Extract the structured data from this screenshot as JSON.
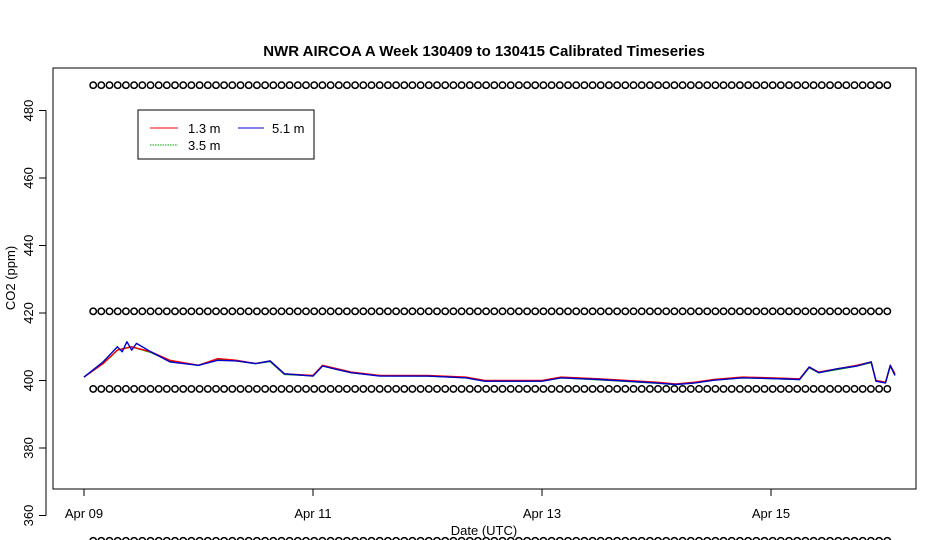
{
  "chart_data": {
    "type": "line",
    "title": "NWR AIRCOA A  Week 130409 to 130415  Calibrated Timeseries",
    "xlabel": "Date (UTC)",
    "ylabel": "CO2 (ppm)",
    "x_ticks": [
      {
        "day": 0,
        "label": "Apr 09"
      },
      {
        "day": 2,
        "label": "Apr 11"
      },
      {
        "day": 4,
        "label": "Apr 13"
      },
      {
        "day": 6,
        "label": "Apr 15"
      }
    ],
    "y_ticks": [
      360,
      380,
      400,
      420,
      440,
      460,
      480
    ],
    "xlim": [
      "Apr 09 00:00",
      "Apr 16 02:00"
    ],
    "ylim": [
      349,
      490
    ],
    "legend": {
      "placement": "top-left",
      "entries": [
        {
          "name": "1.3 m",
          "color": "#ff0000"
        },
        {
          "name": "3.5 m",
          "color": "#00aa00"
        },
        {
          "name": "5.1 m",
          "color": "#0000cc"
        }
      ]
    },
    "reference_marker_rows_ppm": [
      487.5,
      420.5,
      397.5,
      352.5
    ],
    "series": [
      {
        "name": "1.3 m",
        "color": "#ff0000",
        "points": [
          [
            "Apr 09 00:00",
            401
          ],
          [
            "Apr 09 04:00",
            405
          ],
          [
            "Apr 09 07:00",
            409
          ],
          [
            "Apr 09 10:00",
            410
          ],
          [
            "Apr 09 14:00",
            408.5
          ],
          [
            "Apr 09 18:00",
            406
          ],
          [
            "Apr 10 00:00",
            404.5
          ],
          [
            "Apr 10 04:00",
            406.5
          ],
          [
            "Apr 10 08:00",
            406
          ],
          [
            "Apr 10 12:00",
            405
          ],
          [
            "Apr 10 15:00",
            405.8
          ],
          [
            "Apr 10 18:00",
            402
          ],
          [
            "Apr 11 00:00",
            401.5
          ],
          [
            "Apr 11 02:00",
            404.5
          ],
          [
            "Apr 11 05:00",
            403.5
          ],
          [
            "Apr 11 08:00",
            402.5
          ],
          [
            "Apr 11 14:00",
            401.5
          ],
          [
            "Apr 12 00:00",
            401.5
          ],
          [
            "Apr 12 08:00",
            401
          ],
          [
            "Apr 12 12:00",
            400
          ],
          [
            "Apr 13 00:00",
            400
          ],
          [
            "Apr 13 04:00",
            401
          ],
          [
            "Apr 13 12:00",
            400.5
          ],
          [
            "Apr 14 00:00",
            399.5
          ],
          [
            "Apr 14 04:00",
            399
          ],
          [
            "Apr 14 08:00",
            399.5
          ],
          [
            "Apr 14 12:00",
            400.3
          ],
          [
            "Apr 14 18:00",
            401
          ],
          [
            "Apr 15 00:00",
            400.8
          ],
          [
            "Apr 15 06:00",
            400.5
          ],
          [
            "Apr 15 08:00",
            404
          ],
          [
            "Apr 15 10:00",
            402.5
          ],
          [
            "Apr 15 14:00",
            403.5
          ],
          [
            "Apr 15 18:00",
            404.5
          ],
          [
            "Apr 15 21:00",
            405.5
          ],
          [
            "Apr 15 22:00",
            400
          ],
          [
            "Apr 16 00:00",
            399.5
          ],
          [
            "Apr 16 01:00",
            404.5
          ],
          [
            "Apr 16 02:00",
            402
          ]
        ]
      },
      {
        "name": "3.5 m",
        "color": "#00aa00",
        "points": [
          [
            "Apr 09 00:00",
            401
          ],
          [
            "Apr 09 04:00",
            405
          ],
          [
            "Apr 09 07:00",
            409
          ],
          [
            "Apr 09 10:00",
            410
          ],
          [
            "Apr 09 14:00",
            408.3
          ],
          [
            "Apr 09 18:00",
            405.8
          ],
          [
            "Apr 10 00:00",
            404.5
          ],
          [
            "Apr 10 04:00",
            406.3
          ],
          [
            "Apr 10 08:00",
            405.8
          ],
          [
            "Apr 10 12:00",
            405
          ],
          [
            "Apr 10 15:00",
            405.6
          ],
          [
            "Apr 10 18:00",
            401.8
          ],
          [
            "Apr 11 00:00",
            401.4
          ],
          [
            "Apr 11 02:00",
            404.3
          ],
          [
            "Apr 11 05:00",
            403.3
          ],
          [
            "Apr 11 08:00",
            402.3
          ],
          [
            "Apr 11 14:00",
            401.4
          ],
          [
            "Apr 12 00:00",
            401.3
          ],
          [
            "Apr 12 08:00",
            400.8
          ],
          [
            "Apr 12 12:00",
            399.8
          ],
          [
            "Apr 13 00:00",
            399.8
          ],
          [
            "Apr 13 04:00",
            400.8
          ],
          [
            "Apr 13 12:00",
            400.2
          ],
          [
            "Apr 14 00:00",
            399.2
          ],
          [
            "Apr 14 04:00",
            398.8
          ],
          [
            "Apr 14 08:00",
            399.3
          ],
          [
            "Apr 14 12:00",
            400.1
          ],
          [
            "Apr 14 18:00",
            400.8
          ],
          [
            "Apr 15 00:00",
            400.6
          ],
          [
            "Apr 15 06:00",
            400.3
          ],
          [
            "Apr 15 08:00",
            403.8
          ],
          [
            "Apr 15 10:00",
            402.3
          ],
          [
            "Apr 15 14:00",
            403.3
          ],
          [
            "Apr 15 18:00",
            404.3
          ],
          [
            "Apr 15 21:00",
            405.3
          ],
          [
            "Apr 15 22:00",
            399.8
          ],
          [
            "Apr 16 00:00",
            399.3
          ],
          [
            "Apr 16 01:00",
            404.3
          ],
          [
            "Apr 16 02:00",
            401.5
          ]
        ]
      },
      {
        "name": "5.1 m",
        "color": "#0000cc",
        "points": [
          [
            "Apr 09 00:00",
            401
          ],
          [
            "Apr 09 04:00",
            405.5
          ],
          [
            "Apr 09 07:00",
            410
          ],
          [
            "Apr 09 08:00",
            408.5
          ],
          [
            "Apr 09 09:00",
            411.5
          ],
          [
            "Apr 09 10:00",
            409
          ],
          [
            "Apr 09 11:00",
            411
          ],
          [
            "Apr 09 14:00",
            408.5
          ],
          [
            "Apr 09 18:00",
            405.5
          ],
          [
            "Apr 10 00:00",
            404.5
          ],
          [
            "Apr 10 04:00",
            406
          ],
          [
            "Apr 10 08:00",
            405.8
          ],
          [
            "Apr 10 12:00",
            405
          ],
          [
            "Apr 10 15:00",
            405.8
          ],
          [
            "Apr 10 18:00",
            402
          ],
          [
            "Apr 11 00:00",
            401.3
          ],
          [
            "Apr 11 02:00",
            404.3
          ],
          [
            "Apr 11 05:00",
            403.3
          ],
          [
            "Apr 11 08:00",
            402.3
          ],
          [
            "Apr 11 14:00",
            401.3
          ],
          [
            "Apr 12 00:00",
            401.3
          ],
          [
            "Apr 12 08:00",
            400.8
          ],
          [
            "Apr 12 12:00",
            399.8
          ],
          [
            "Apr 13 00:00",
            399.8
          ],
          [
            "Apr 13 04:00",
            400.8
          ],
          [
            "Apr 13 12:00",
            400.3
          ],
          [
            "Apr 14 00:00",
            399.3
          ],
          [
            "Apr 14 04:00",
            398.8
          ],
          [
            "Apr 14 08:00",
            399.3
          ],
          [
            "Apr 14 12:00",
            400.1
          ],
          [
            "Apr 14 18:00",
            400.8
          ],
          [
            "Apr 15 00:00",
            400.6
          ],
          [
            "Apr 15 06:00",
            400.3
          ],
          [
            "Apr 15 08:00",
            404
          ],
          [
            "Apr 15 10:00",
            402.3
          ],
          [
            "Apr 15 14:00",
            403.5
          ],
          [
            "Apr 15 18:00",
            404.3
          ],
          [
            "Apr 15 21:00",
            405.5
          ],
          [
            "Apr 15 22:00",
            399.8
          ],
          [
            "Apr 16 00:00",
            399.3
          ],
          [
            "Apr 16 01:00",
            404.5
          ],
          [
            "Apr 16 02:00",
            401.5
          ]
        ]
      }
    ]
  }
}
